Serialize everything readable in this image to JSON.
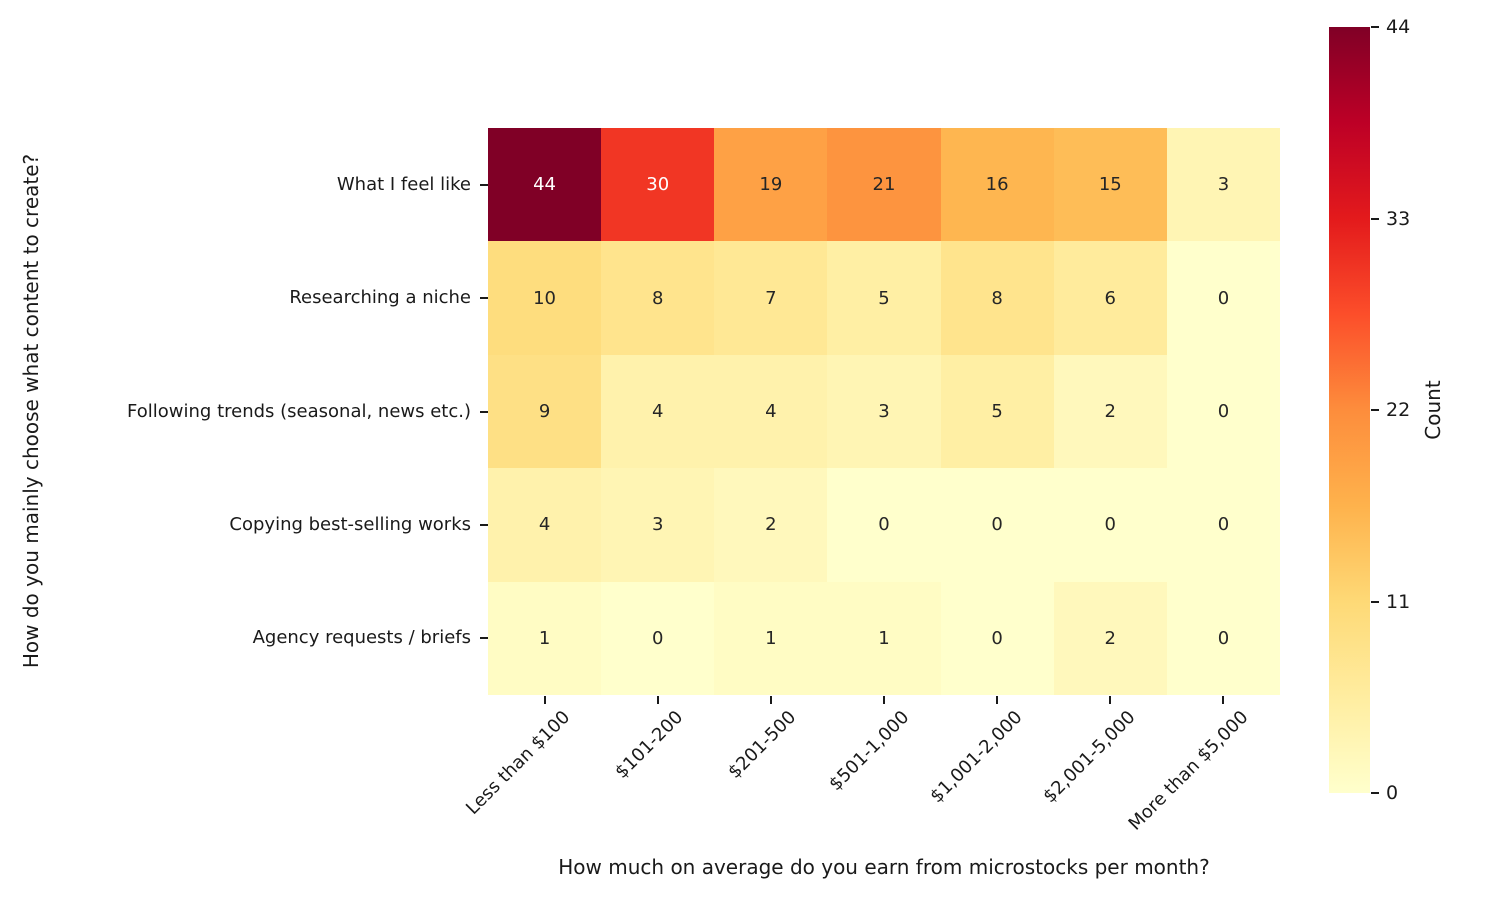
{
  "chart_data": {
    "type": "heatmap",
    "title": "",
    "xlabel": "How much on average do you earn from microstocks per month?",
    "ylabel": "How do you mainly choose what content to create?",
    "columns": [
      "Less than $100",
      "$101-200",
      "$201-500",
      "$501-1,000",
      "$1,001-2,000",
      "$2,001-5,000",
      "More than $5,000"
    ],
    "rows": [
      "What I feel like",
      "Researching a niche",
      "Following trends (seasonal, news etc.)",
      "Copying best-selling works",
      "Agency requests / briefs"
    ],
    "values": [
      [
        44,
        30,
        19,
        21,
        16,
        15,
        3
      ],
      [
        10,
        8,
        7,
        5,
        8,
        6,
        0
      ],
      [
        9,
        4,
        4,
        3,
        5,
        2,
        0
      ],
      [
        4,
        3,
        2,
        0,
        0,
        0,
        0
      ],
      [
        1,
        0,
        1,
        1,
        0,
        2,
        0
      ]
    ],
    "vmin": 0,
    "vmax": 44,
    "grid": false,
    "colorbar": {
      "label": "Count",
      "ticks": [
        0,
        11,
        22,
        33,
        44
      ],
      "position": "right"
    },
    "colormap": {
      "name": "YlOrRd",
      "anchors": [
        [
          0.0,
          "#ffffcc"
        ],
        [
          0.125,
          "#ffeda0"
        ],
        [
          0.25,
          "#fed976"
        ],
        [
          0.375,
          "#feb24c"
        ],
        [
          0.5,
          "#fd8d3c"
        ],
        [
          0.625,
          "#fc4e2a"
        ],
        [
          0.75,
          "#e31a1c"
        ],
        [
          0.875,
          "#bd0026"
        ],
        [
          1.0,
          "#800026"
        ]
      ]
    },
    "annotation_text_colors": {
      "on_dark": "#ffffff",
      "on_light": "#262626"
    },
    "tick_color": "#1a1a1a"
  }
}
